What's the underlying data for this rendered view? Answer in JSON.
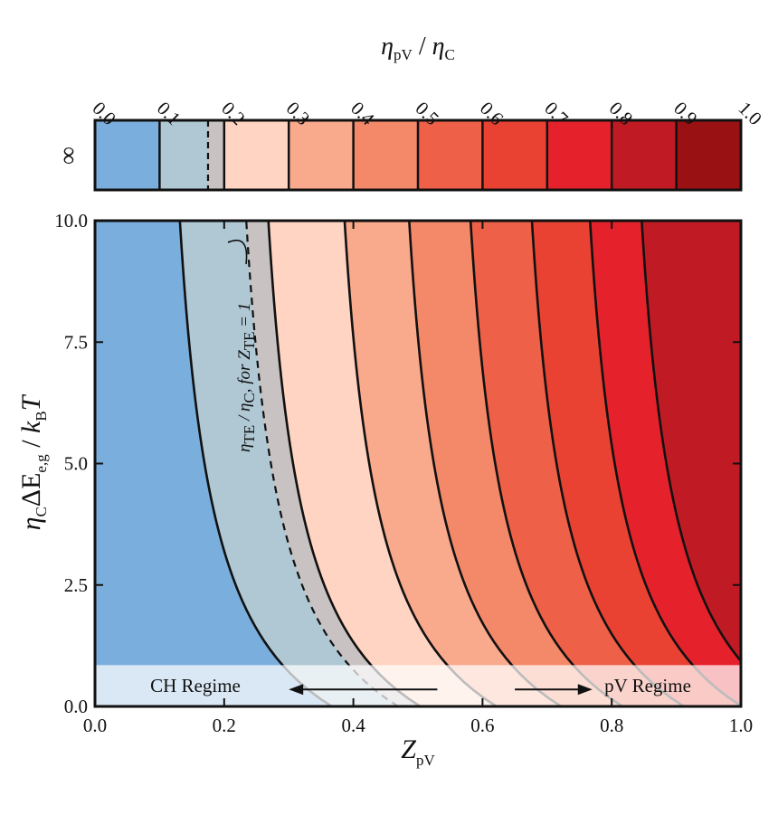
{
  "chart_data": {
    "type": "heatmap",
    "description_markers": true,
    "colorbar": {
      "title": {
        "main": "η",
        "sub1": "pV",
        "sep": " / ",
        "main2": "η",
        "sub2": "C"
      },
      "tick_labels": [
        "0.0",
        "0.1",
        "0.2",
        "0.3",
        "0.4",
        "0.5",
        "0.6",
        "0.7",
        "0.8",
        "0.9",
        "1.0"
      ],
      "row_label": "∞",
      "levels": [
        0.0,
        0.1,
        0.2,
        0.3,
        0.4,
        0.5,
        0.6,
        0.7,
        0.8,
        0.9,
        1.0
      ],
      "colors": [
        "#7aaedc",
        "#afc8d4",
        "#ffd4c2",
        "#f9a98c",
        "#f4896a",
        "#ee6048",
        "#ea4232",
        "#e5222b",
        "#c01b24",
        "#9a1114"
      ],
      "dashed_level": 0.175,
      "gray_color": "#c8c2c2"
    },
    "xlabel": {
      "main": "Z",
      "sub": "pV"
    },
    "ylabel": {
      "pre": "η",
      "pre_sub": "C",
      "mid": "ΔE",
      "mid_sub": "e,g",
      "sep": " / ",
      "post": "k",
      "post_sub": "B",
      "end": "T"
    },
    "xlim": [
      0.0,
      1.0
    ],
    "ylim": [
      0.0,
      10.0
    ],
    "x_ticks": [
      0.0,
      0.2,
      0.4,
      0.6,
      0.8,
      1.0
    ],
    "x_tick_labels": [
      "0.0",
      "0.2",
      "0.4",
      "0.6",
      "0.8",
      "1.0"
    ],
    "y_ticks": [
      0.0,
      2.5,
      5.0,
      7.5,
      10.0
    ],
    "y_tick_labels": [
      "0.0",
      "2.5",
      "5.0",
      "7.5",
      "10.0"
    ],
    "contour_levels": [
      0.1,
      0.2,
      0.3,
      0.4,
      0.5,
      0.6,
      0.7,
      0.8
    ],
    "te_contour": {
      "level": 0.175,
      "label": {
        "main": "η",
        "sub": "TE",
        "mid": " / η",
        "mid_sub": "C",
        "post": ", for Z",
        "post_sub": "TE",
        "end": " = 1"
      }
    },
    "regime_band_y": [
      0.0,
      0.85
    ],
    "regimes": [
      {
        "label": "CH Regime",
        "arrow": "left",
        "x_from": 0.53,
        "x_to": 0.3
      },
      {
        "label": "pV Regime",
        "arrow": "right",
        "x_from": 0.65,
        "x_to": 0.77
      }
    ]
  }
}
